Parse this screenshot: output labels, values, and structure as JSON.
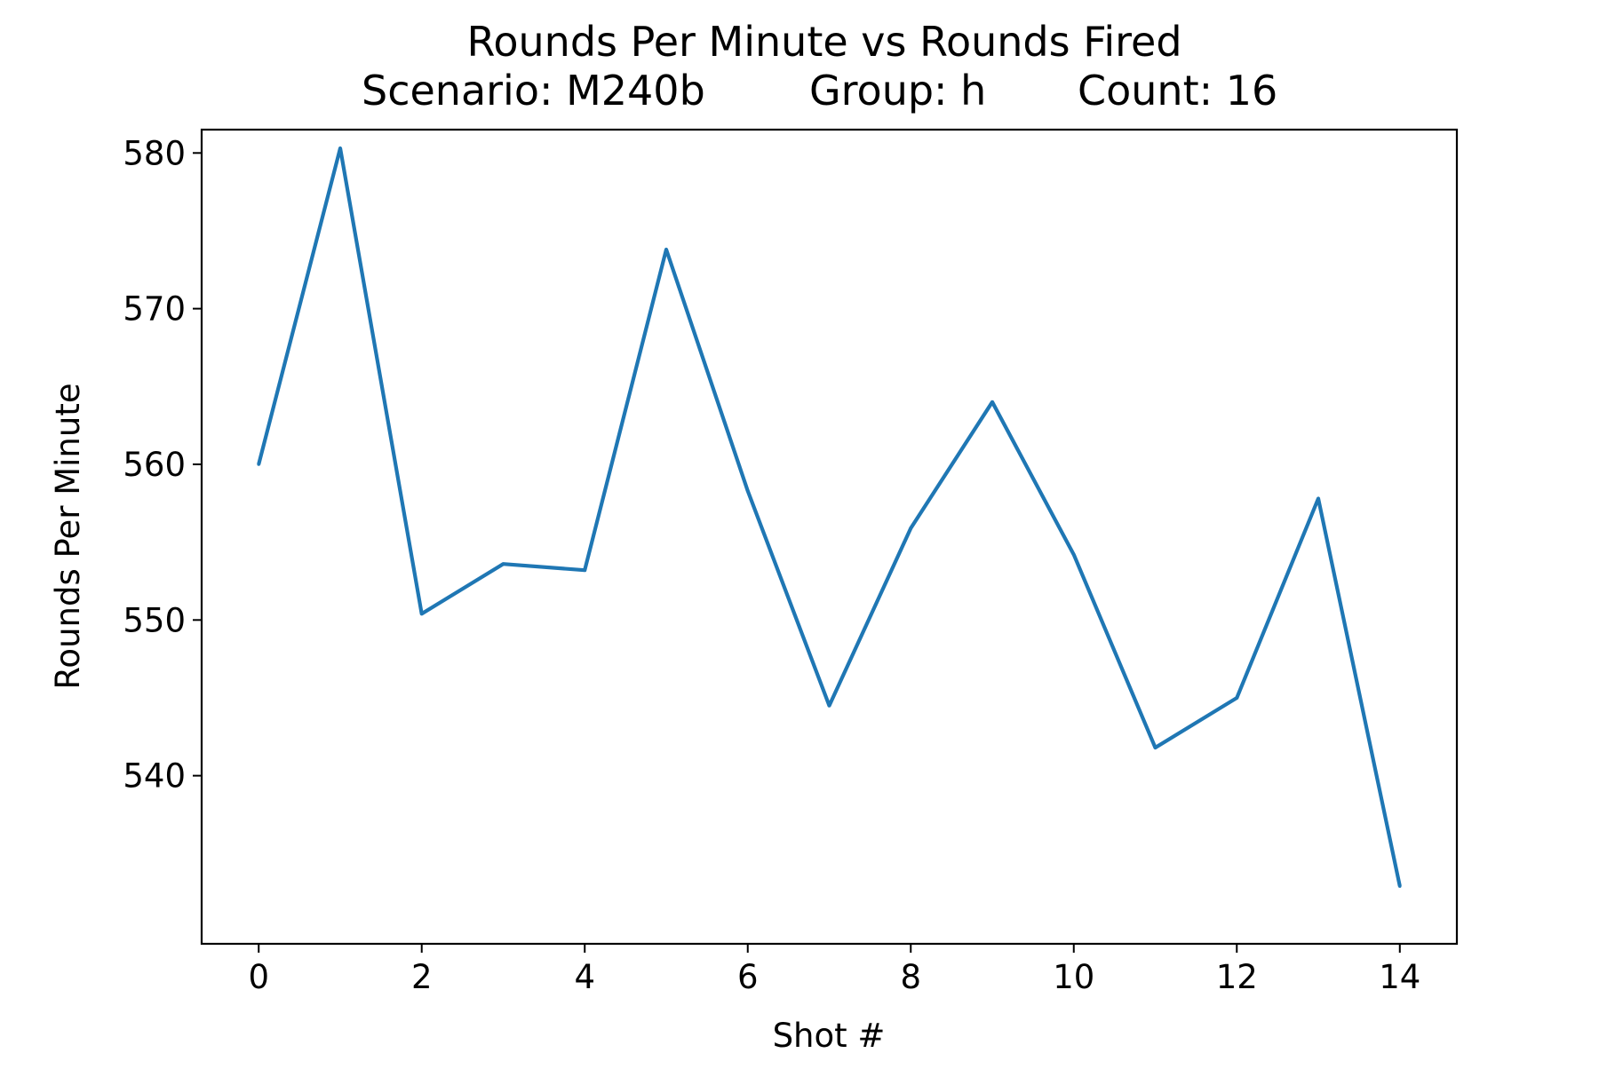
{
  "chart_data": {
    "type": "line",
    "title": "Rounds Per Minute vs Rounds Fired",
    "subtitle": {
      "scenario": "Scenario: M240b",
      "group": "Group: h",
      "count": "Count: 16"
    },
    "xlabel": "Shot #",
    "ylabel": "Rounds Per Minute",
    "xlim": [
      -0.7,
      14.7
    ],
    "ylim": [
      529.2,
      581.5
    ],
    "xticks": [
      0,
      2,
      4,
      6,
      8,
      10,
      12,
      14
    ],
    "yticks": [
      540,
      550,
      560,
      570,
      580
    ],
    "grid": false,
    "legend": "none",
    "series": [
      {
        "color": "#1f77b4",
        "x": [
          0,
          1,
          2,
          3,
          4,
          5,
          6,
          7,
          8,
          9,
          10,
          11,
          12,
          13,
          14
        ],
        "y": [
          560.0,
          580.3,
          550.4,
          553.6,
          553.2,
          573.8,
          558.3,
          544.5,
          555.9,
          564.0,
          554.2,
          541.8,
          545.0,
          557.8,
          532.9
        ]
      }
    ]
  }
}
